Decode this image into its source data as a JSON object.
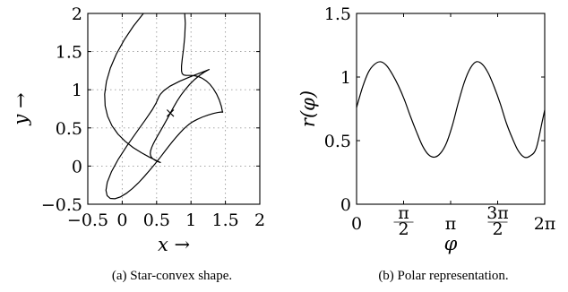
{
  "chart_data": [
    {
      "type": "line",
      "subplot": "a",
      "caption": "(a) Star-convex shape.",
      "xlabel": "x →",
      "ylabel": "y →",
      "xlim": [
        -0.5,
        2
      ],
      "ylim": [
        -0.5,
        2
      ],
      "xticks": [
        -0.5,
        0,
        0.5,
        1,
        1.5,
        2
      ],
      "xtick_labels": [
        "−0.5",
        "0",
        "0.5",
        "1",
        "1.5",
        "2"
      ],
      "yticks": [
        -0.5,
        0,
        0.5,
        1,
        1.5,
        2
      ],
      "ytick_labels": [
        "−0.5",
        "0",
        "0.5",
        "1",
        "1.5",
        "2"
      ],
      "grid": true,
      "center": {
        "x": 0.7,
        "y": 0.7,
        "marker": "×"
      },
      "shape_x": [
        1.46,
        1.441,
        1.411,
        1.372,
        1.326,
        1.276,
        1.222,
        1.166,
        1.111,
        1.057,
        1.007,
        0.962,
        0.924,
        0.893,
        0.872,
        0.862,
        0.862,
        0.873,
        0.892,
        0.909,
        0.917,
        0.906,
        0.87,
        0.805,
        0.711,
        0.59,
        0.452,
        0.306,
        0.162,
        0.029,
        -0.085,
        -0.172,
        -0.229,
        -0.255,
        -0.248,
        -0.212,
        -0.149,
        -0.063,
        0.042,
        0.159,
        0.279,
        0.389,
        0.478,
        0.538,
        0.561,
        0.55,
        0.514,
        0.473,
        0.438,
        0.416,
        0.408,
        0.413,
        0.429,
        0.453,
        0.483,
        0.518,
        0.555,
        0.593,
        0.631,
        0.669,
        0.708,
        0.75,
        0.797,
        0.85,
        0.912,
        0.979,
        1.051,
        1.123,
        1.189,
        1.241,
        1.268,
        1.264,
        1.215,
        1.125,
        0.99,
        0.835,
        0.695,
        0.604,
        0.558,
        0.535,
        0.518,
        0.492,
        0.437,
        0.34,
        0.211,
        0.07,
        -0.058,
        -0.157,
        -0.217,
        -0.236,
        -0.219,
        -0.173,
        -0.105,
        -0.025,
        0.061,
        0.149,
        0.235,
        0.318,
        0.399,
        0.478,
        0.553,
        0.619,
        0.678,
        0.73,
        0.776,
        0.817,
        0.854,
        0.891,
        0.93,
        0.974,
        1.028,
        1.093,
        1.168,
        1.248,
        1.324,
        1.389,
        1.435,
        1.46
      ],
      "shape_y": [
        0.7,
        0.783,
        0.866,
        0.943,
        1.012,
        1.07,
        1.116,
        1.149,
        1.171,
        1.183,
        1.188,
        1.188,
        1.189,
        1.194,
        1.211,
        1.247,
        1.31,
        1.406,
        1.538,
        1.698,
        1.872,
        2.038,
        2.171,
        2.252,
        2.271,
        2.229,
        2.133,
        1.997,
        1.833,
        1.653,
        1.468,
        1.284,
        1.108,
        0.942,
        0.79,
        0.652,
        0.529,
        0.42,
        0.325,
        0.243,
        0.175,
        0.12,
        0.08,
        0.054,
        0.045,
        0.048,
        0.06,
        0.078,
        0.101,
        0.129,
        0.162,
        0.201,
        0.245,
        0.293,
        0.345,
        0.401,
        0.459,
        0.519,
        0.58,
        0.642,
        0.708,
        0.777,
        0.85,
        0.924,
        0.998,
        1.069,
        1.133,
        1.187,
        1.228,
        1.255,
        1.268,
        1.265,
        1.248,
        1.217,
        1.17,
        1.112,
        1.047,
        0.988,
        0.944,
        0.912,
        0.878,
        0.825,
        0.738,
        0.61,
        0.447,
        0.267,
        0.088,
        -0.076,
        -0.213,
        -0.318,
        -0.388,
        -0.424,
        -0.428,
        -0.404,
        -0.357,
        -0.294,
        -0.221,
        -0.14,
        -0.056,
        0.03,
        0.114,
        0.192,
        0.261,
        0.32,
        0.37,
        0.412,
        0.449,
        0.484,
        0.516,
        0.549,
        0.582,
        0.613,
        0.643,
        0.669,
        0.689,
        0.702,
        0.707,
        0.707
      ]
    },
    {
      "type": "line",
      "subplot": "b",
      "caption": "(b) Polar representation.",
      "xlabel": "φ",
      "ylabel": "r(φ)",
      "xlim": [
        0,
        6.2832
      ],
      "ylim": [
        0,
        1.5
      ],
      "xticks": [
        0,
        1.5708,
        3.1416,
        4.7124,
        6.2832
      ],
      "xtick_labels": [
        "0",
        "π/2",
        "π",
        "3π/2",
        "2π"
      ],
      "yticks": [
        0,
        0.5,
        1,
        1.5
      ],
      "ytick_labels": [
        "0",
        "0.5",
        "1",
        "1.5"
      ],
      "grid": false,
      "phi": [
        0,
        0.2,
        0.4,
        0.6,
        0.8,
        1.0,
        1.2,
        1.4,
        1.6,
        1.8,
        2.0,
        2.2,
        2.4,
        2.6,
        2.8,
        3.0,
        3.2,
        3.4,
        3.6,
        3.8,
        4.0,
        4.2,
        4.4,
        4.6,
        4.8,
        5.0,
        5.2,
        5.4,
        5.6,
        5.8,
        6.0,
        6.2,
        6.2832
      ],
      "r": [
        0.76,
        0.92,
        1.04,
        1.1,
        1.12,
        1.09,
        1.02,
        0.93,
        0.82,
        0.69,
        0.57,
        0.46,
        0.39,
        0.37,
        0.4,
        0.48,
        0.62,
        0.8,
        0.96,
        1.07,
        1.12,
        1.1,
        1.03,
        0.92,
        0.79,
        0.64,
        0.52,
        0.42,
        0.37,
        0.38,
        0.44,
        0.65,
        0.74
      ]
    }
  ]
}
